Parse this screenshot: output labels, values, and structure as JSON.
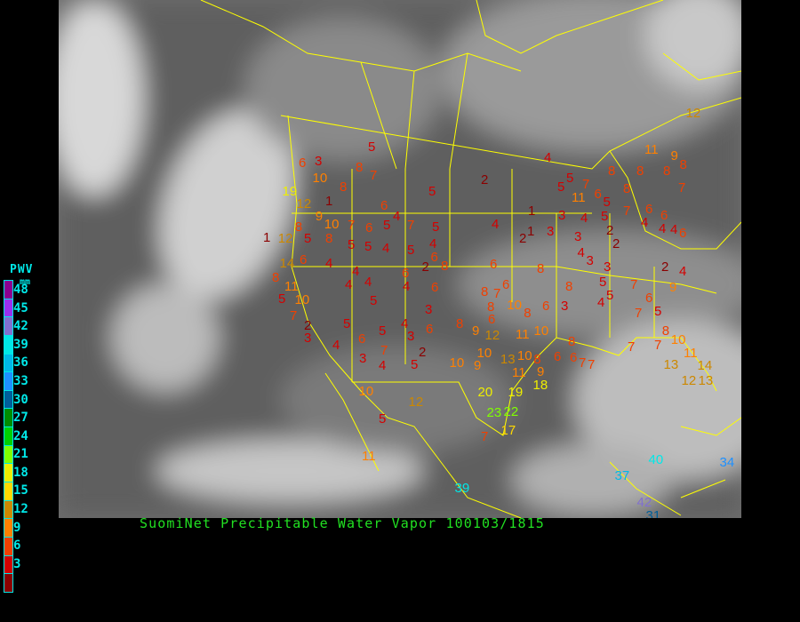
{
  "title": "SuomiNet Precipitable Water Vapor 100103/1815",
  "legend": {
    "title": "PWV",
    "unit": "mm",
    "labels": [
      "48",
      "45",
      "42",
      "39",
      "36",
      "33",
      "30",
      "27",
      "24",
      "21",
      "18",
      "15",
      "12",
      "9",
      "6",
      "3"
    ],
    "colors": [
      "#8b0090",
      "#9a30f0",
      "#8070d0",
      "#00e8e8",
      "#00b8e8",
      "#1e90ff",
      "#005f9a",
      "#008c00",
      "#00d000",
      "#80ff00",
      "#eeee00",
      "#ffd800",
      "#cc8800",
      "#ff8000",
      "#f04000",
      "#d40000",
      "#8b0000"
    ]
  },
  "map": {
    "background_color": "#6e6e6e",
    "border_color": "#ffff00"
  },
  "stations": [
    "5",
    "6",
    "3",
    "8",
    "7",
    "10",
    "8",
    "19",
    "12",
    "1",
    "9",
    "6",
    "4",
    "5",
    "2",
    "4",
    "5",
    "5",
    "7",
    "11",
    "6",
    "5",
    "8",
    "8",
    "8",
    "8",
    "11",
    "9",
    "12",
    "8",
    "7",
    "1",
    "3",
    "4",
    "5",
    "7",
    "6",
    "6",
    "4",
    "6",
    "4",
    "2",
    "1",
    "3",
    "3",
    "2",
    "2",
    "4",
    "4",
    "1",
    "12",
    "5",
    "8",
    "8",
    "10",
    "7",
    "5",
    "6",
    "5",
    "5",
    "4",
    "7",
    "5",
    "5",
    "4",
    "6",
    "2",
    "8",
    "6",
    "4",
    "6",
    "4",
    "4",
    "4",
    "4",
    "5",
    "14",
    "6",
    "8",
    "11",
    "10",
    "5",
    "7",
    "2",
    "3",
    "5",
    "4",
    "6",
    "5",
    "7",
    "3",
    "4",
    "4",
    "3",
    "6",
    "3",
    "2",
    "5",
    "6",
    "6",
    "8",
    "7",
    "8",
    "8",
    "10",
    "8",
    "8",
    "6",
    "8",
    "9",
    "12",
    "11",
    "10",
    "6",
    "3",
    "3",
    "4",
    "3",
    "2",
    "4",
    "5",
    "5",
    "4",
    "7",
    "6",
    "7",
    "5",
    "9",
    "10",
    "9",
    "10",
    "13",
    "11",
    "10",
    "8",
    "9",
    "6",
    "8",
    "7",
    "7",
    "6",
    "7",
    "7",
    "8",
    "10",
    "11",
    "13",
    "12",
    "13",
    "14",
    "20",
    "19",
    "18",
    "23",
    "22",
    "17",
    "7",
    "10",
    "5",
    "12",
    "11",
    "39",
    "37",
    "40",
    "42",
    "31",
    "34"
  ]
}
